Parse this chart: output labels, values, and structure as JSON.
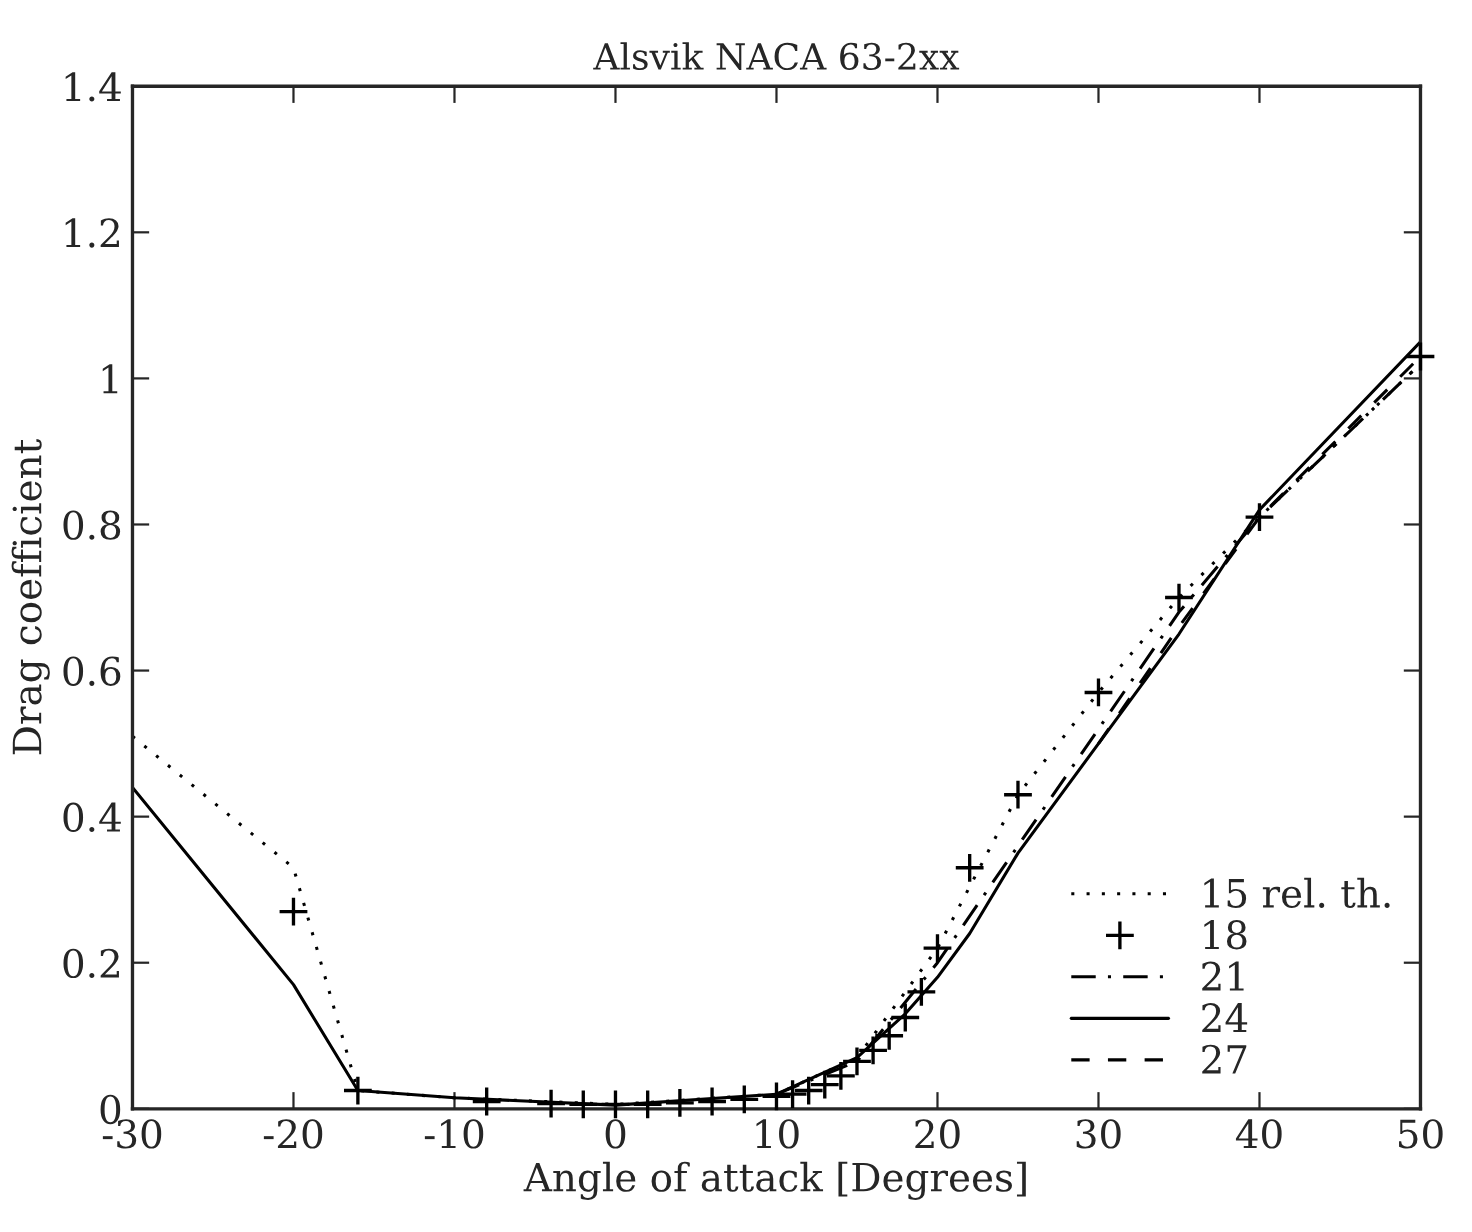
{
  "chart_data": {
    "type": "line",
    "title": "Alsvik NACA 63-2xx",
    "xlabel": "Angle of attack [Degrees]",
    "ylabel": "Drag coefficient",
    "xlim": [
      -30,
      50
    ],
    "ylim": [
      0,
      1.4
    ],
    "xticks": [
      -30,
      -20,
      -10,
      0,
      10,
      20,
      30,
      40,
      50
    ],
    "yticks": [
      0,
      0.2,
      0.4,
      0.6,
      0.8,
      1,
      1.2,
      1.4
    ],
    "grid": false,
    "legend": "bottom right",
    "series": [
      {
        "name": "15 rel. th.",
        "color": "#000000",
        "line_style": "dotted",
        "marker": "none",
        "x": [
          -30,
          -20,
          -16,
          -10,
          0,
          10,
          15,
          20,
          25,
          30,
          35,
          40,
          50
        ],
        "values": [
          0.51,
          0.33,
          0.025,
          0.015,
          0.006,
          0.02,
          0.07,
          0.22,
          0.43,
          0.57,
          0.7,
          0.81,
          1.02
        ]
      },
      {
        "name": "18",
        "color": "#000000",
        "type": "scatter",
        "marker": "cross",
        "x": [
          -20,
          -16,
          -8,
          -4,
          -2,
          0,
          2,
          4,
          6,
          8,
          10,
          11,
          12,
          13,
          14,
          15,
          16,
          17,
          18,
          19,
          20,
          22,
          25,
          30,
          35,
          40,
          50
        ],
        "values": [
          0.27,
          0.025,
          0.01,
          0.007,
          0.006,
          0.006,
          0.006,
          0.008,
          0.01,
          0.013,
          0.017,
          0.02,
          0.025,
          0.033,
          0.045,
          0.065,
          0.08,
          0.1,
          0.125,
          0.16,
          0.22,
          0.33,
          0.43,
          0.57,
          0.7,
          0.81,
          1.03
        ]
      },
      {
        "name": "21",
        "color": "#000000",
        "line_style": "dashdot",
        "marker": "none",
        "x": [
          10,
          15,
          20,
          25,
          30,
          35,
          40,
          50
        ],
        "values": [
          0.02,
          0.065,
          0.2,
          0.36,
          0.52,
          0.68,
          0.81,
          1.02
        ]
      },
      {
        "name": "24",
        "color": "#000000",
        "line_style": "solid",
        "marker": "none",
        "x": [
          -30,
          -20,
          -16,
          -10,
          0,
          10,
          15,
          18,
          20,
          22,
          25,
          30,
          35,
          40,
          50
        ],
        "values": [
          0.44,
          0.17,
          0.025,
          0.015,
          0.005,
          0.02,
          0.07,
          0.13,
          0.18,
          0.24,
          0.35,
          0.5,
          0.65,
          0.82,
          1.05
        ]
      },
      {
        "name": "27",
        "color": "#000000",
        "line_style": "dashed",
        "marker": "none",
        "x": [
          30,
          35,
          40,
          50
        ],
        "values": [
          0.5,
          0.66,
          0.81,
          1.03
        ]
      }
    ]
  }
}
